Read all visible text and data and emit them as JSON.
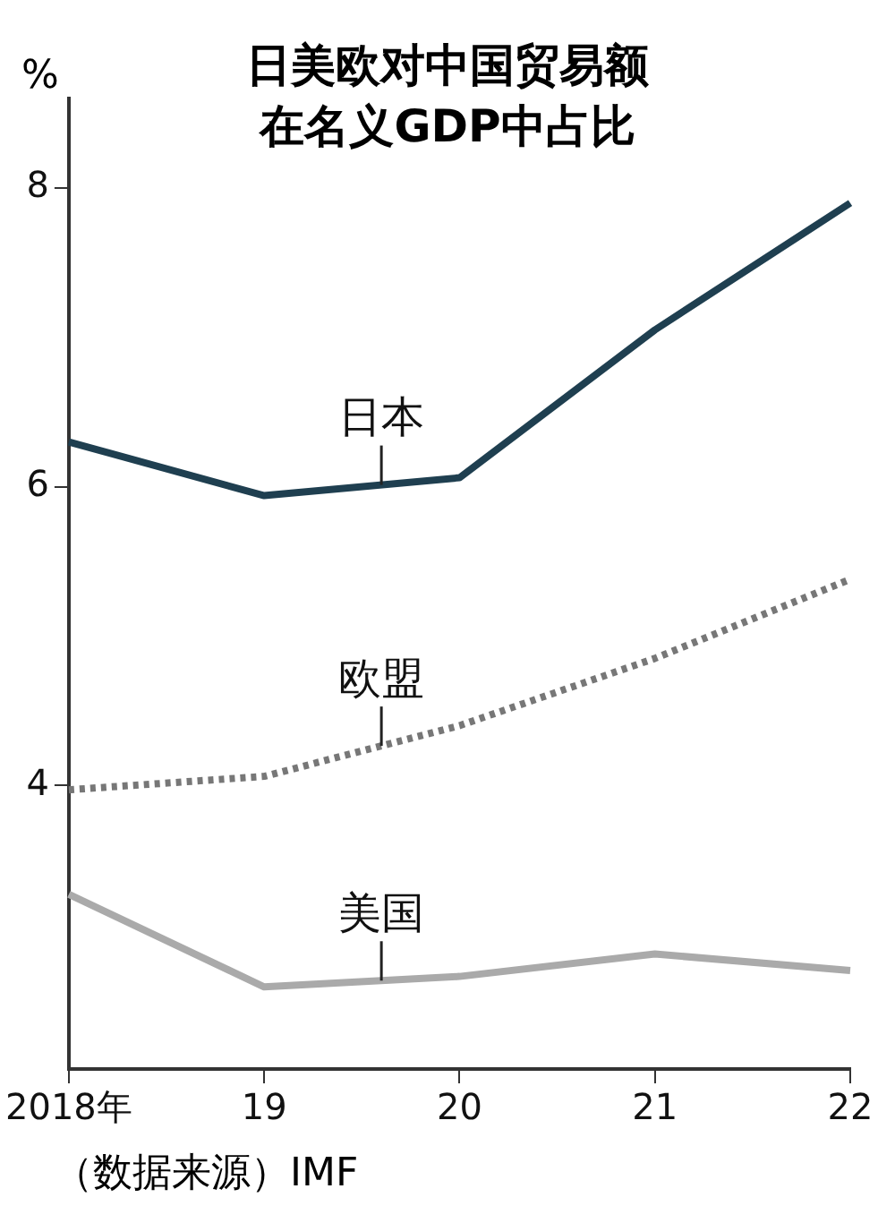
{
  "chart_data": {
    "type": "line",
    "title": "日美欧对中国贸易额在名义GDP中占比",
    "ylabel": "%",
    "categories": [
      "2018年",
      "19",
      "20",
      "21",
      "22"
    ],
    "series": [
      {
        "name": "日本",
        "color": "#1f3f50",
        "line_style": "solid",
        "values": [
          6.3,
          5.94,
          6.06,
          7.05,
          7.9
        ]
      },
      {
        "name": "欧盟",
        "color": "#777777",
        "line_style": "dotted",
        "values": [
          3.97,
          4.06,
          4.4,
          4.85,
          5.38
        ]
      },
      {
        "name": "美国",
        "color": "#aaaaaa",
        "line_style": "solid",
        "values": [
          3.27,
          2.65,
          2.72,
          2.87,
          2.76
        ]
      }
    ],
    "ylim": [
      2.1,
      8.6
    ],
    "yticks": [
      4,
      6,
      8
    ],
    "grid": false,
    "legend": false,
    "marker": "none",
    "annotations": [
      "（数据来源）IMF"
    ]
  }
}
